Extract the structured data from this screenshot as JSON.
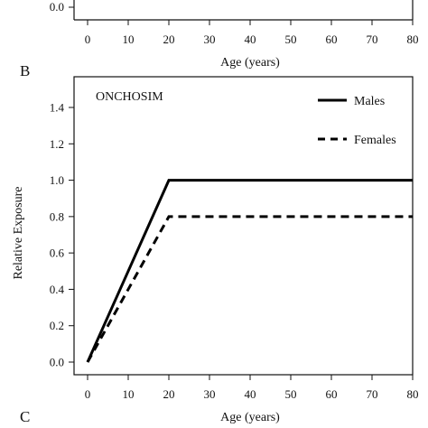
{
  "top_panel": {
    "y_tick_visible": "0.0",
    "x_ticks": [
      "0",
      "10",
      "20",
      "30",
      "40",
      "50",
      "60",
      "70",
      "80"
    ],
    "xlabel": "Age (years)"
  },
  "panel_letters": {
    "b": "B",
    "c": "C"
  },
  "chart_data": {
    "type": "line",
    "title": "ONCHOSIM",
    "xlabel": "Age (years)",
    "ylabel": "Relative Exposure",
    "xlim": [
      0,
      80
    ],
    "ylim": [
      0,
      1.4
    ],
    "x_ticks": [
      0,
      10,
      20,
      30,
      40,
      50,
      60,
      70,
      80
    ],
    "y_ticks": [
      0.0,
      0.2,
      0.4,
      0.6,
      0.8,
      1.0,
      1.2,
      1.4
    ],
    "x_tick_labels": [
      "0",
      "10",
      "20",
      "30",
      "40",
      "50",
      "60",
      "70",
      "80"
    ],
    "y_tick_labels": [
      "0.0",
      "0.2",
      "0.4",
      "0.6",
      "0.8",
      "1.0",
      "1.2",
      "1.4"
    ],
    "legend_position": "top-right",
    "series": [
      {
        "name": "Males",
        "style": "solid",
        "color": "#000000",
        "x": [
          0,
          20,
          80
        ],
        "y": [
          0,
          1.0,
          1.0
        ]
      },
      {
        "name": "Females",
        "style": "dashed",
        "color": "#000000",
        "x": [
          0,
          20,
          80
        ],
        "y": [
          0,
          0.8,
          0.8
        ]
      }
    ]
  },
  "bottom_panel": {
    "xlabel": "Age (years)"
  }
}
